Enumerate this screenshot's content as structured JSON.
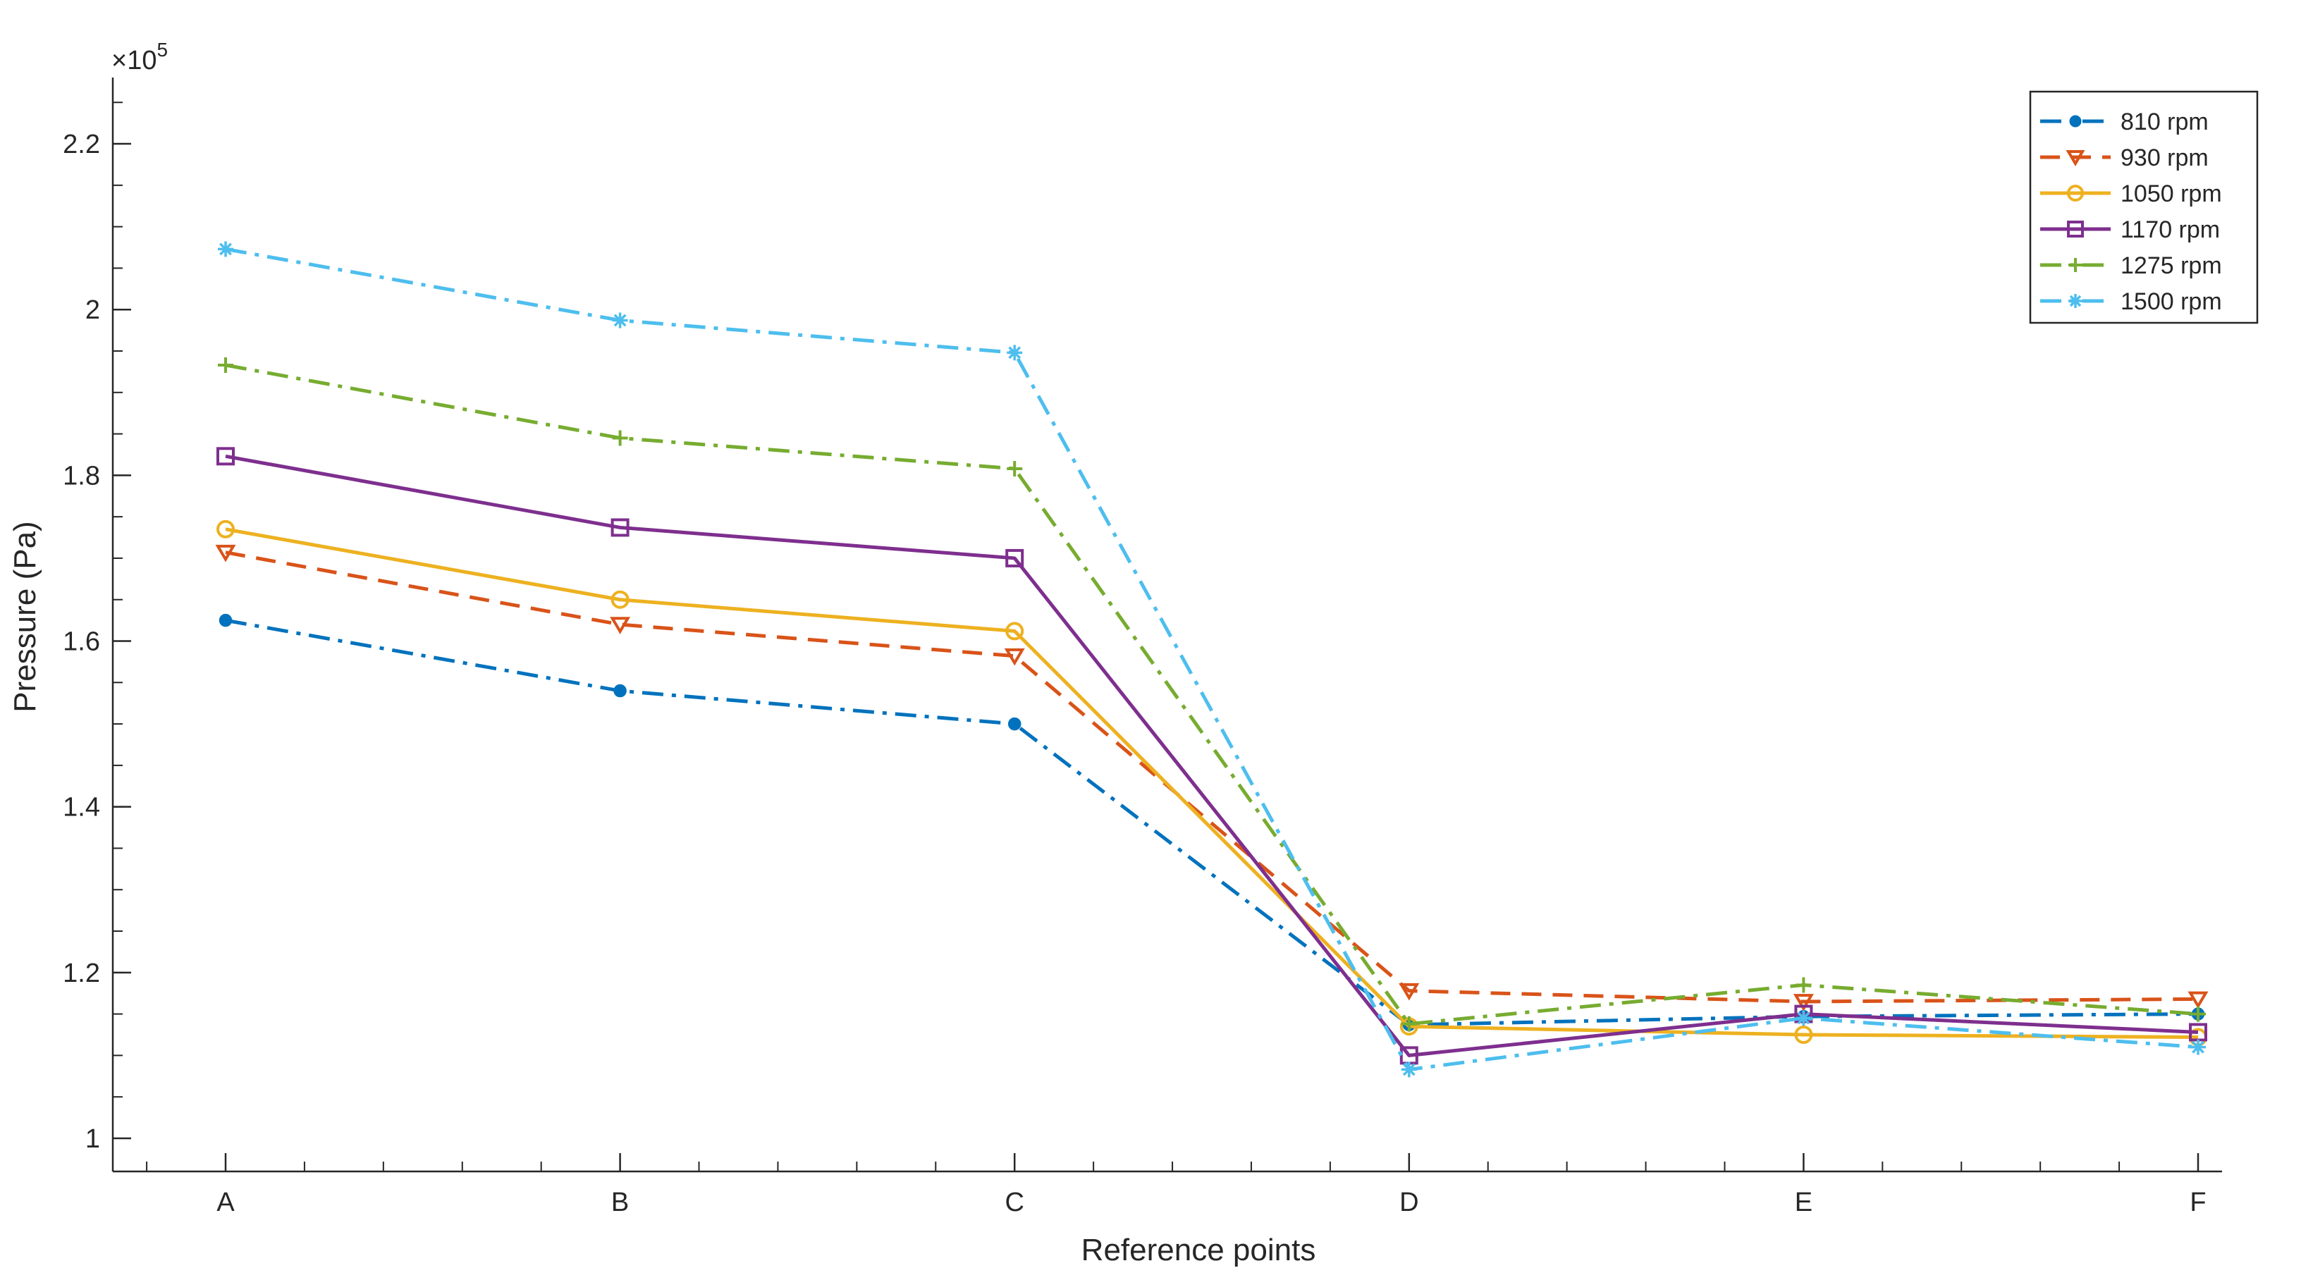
{
  "chart_data": {
    "type": "line",
    "categories": [
      "A",
      "B",
      "C",
      "D",
      "E",
      "F"
    ],
    "xlabel": "Reference points",
    "ylabel": "Pressure (Pa)",
    "exponent_label": "×10",
    "exponent_power": "5",
    "ylim": [
      0.96,
      2.28
    ],
    "yticks": [
      "1",
      "1.2",
      "1.4",
      "1.6",
      "1.8",
      "2",
      "2.2"
    ],
    "ytick_values": [
      1.0,
      1.2,
      1.4,
      1.6,
      1.8,
      2.0,
      2.2
    ],
    "legend_position": "top-right",
    "series": [
      {
        "name": "810 rpm",
        "values": [
          1.625,
          1.54,
          1.5,
          1.137,
          1.147,
          1.15
        ],
        "color": "#0072BD",
        "dash": "dashdot",
        "marker": "dot"
      },
      {
        "name": "930 rpm",
        "values": [
          1.707,
          1.62,
          1.582,
          1.178,
          1.165,
          1.168
        ],
        "color": "#D95319",
        "dash": "dashed",
        "marker": "triangle-down"
      },
      {
        "name": "1050 rpm",
        "values": [
          1.735,
          1.65,
          1.612,
          1.135,
          1.125,
          1.122
        ],
        "color": "#EDB120",
        "dash": "solid",
        "marker": "circle"
      },
      {
        "name": "1170 rpm",
        "values": [
          1.823,
          1.737,
          1.7,
          1.1,
          1.15,
          1.128
        ],
        "color": "#7E2F8E",
        "dash": "solid",
        "marker": "square"
      },
      {
        "name": "1275 rpm",
        "values": [
          1.933,
          1.845,
          1.808,
          1.138,
          1.185,
          1.15
        ],
        "color": "#77AC30",
        "dash": "dashdot",
        "marker": "plus"
      },
      {
        "name": "1500 rpm",
        "values": [
          2.073,
          1.987,
          1.948,
          1.083,
          1.145,
          1.11
        ],
        "color": "#4DBEEE",
        "dash": "dashdot",
        "marker": "star"
      }
    ]
  }
}
